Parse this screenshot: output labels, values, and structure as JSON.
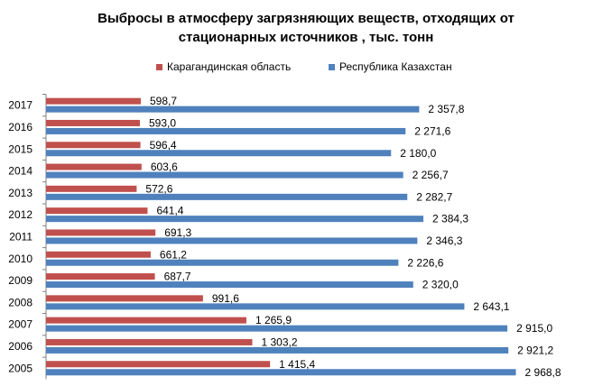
{
  "chart_data": {
    "type": "bar",
    "orientation": "horizontal",
    "title": "Выбросы в атмосферу загрязняющих веществ, отходящих от стационарных источников , тыс. тонн",
    "title_lines": [
      "Выбросы в атмосферу загрязняющих веществ, отходящих от",
      "стационарных источников , тыс. тонн"
    ],
    "legend_position": "top",
    "grid": false,
    "xlim": [
      0,
      3000
    ],
    "categories": [
      "2017",
      "2016",
      "2015",
      "2014",
      "2013",
      "2012",
      "2011",
      "2010",
      "2009",
      "2008",
      "2007",
      "2006",
      "2005"
    ],
    "series": [
      {
        "name": "Карагандинская область",
        "color": "#C0504D",
        "values": [
          598.7,
          593.0,
          596.4,
          603.6,
          572.6,
          641.4,
          691.3,
          661.2,
          687.7,
          991.6,
          1265.9,
          1303.2,
          1415.4
        ],
        "labels": [
          "598,7",
          "593,0",
          "596,4",
          "603,6",
          "572,6",
          "641,4",
          "691,3",
          "661,2",
          "687,7",
          "991,6",
          "1 265,9",
          "1 303,2",
          "1 415,4"
        ]
      },
      {
        "name": "Республика Казахстан",
        "color": "#4F81BD",
        "values": [
          2357.8,
          2271.6,
          2180.0,
          2256.7,
          2282.7,
          2384.3,
          2346.3,
          2226.6,
          2320.0,
          2643.1,
          2915.0,
          2921.2,
          2968.8
        ],
        "labels": [
          "2 357,8",
          "2 271,6",
          "2 180,0",
          "2 256,7",
          "2 282,7",
          "2 384,3",
          "2 346,3",
          "2 226,6",
          "2 320,0",
          "2 643,1",
          "2 915,0",
          "2 921,2",
          "2 968,8"
        ]
      }
    ]
  }
}
